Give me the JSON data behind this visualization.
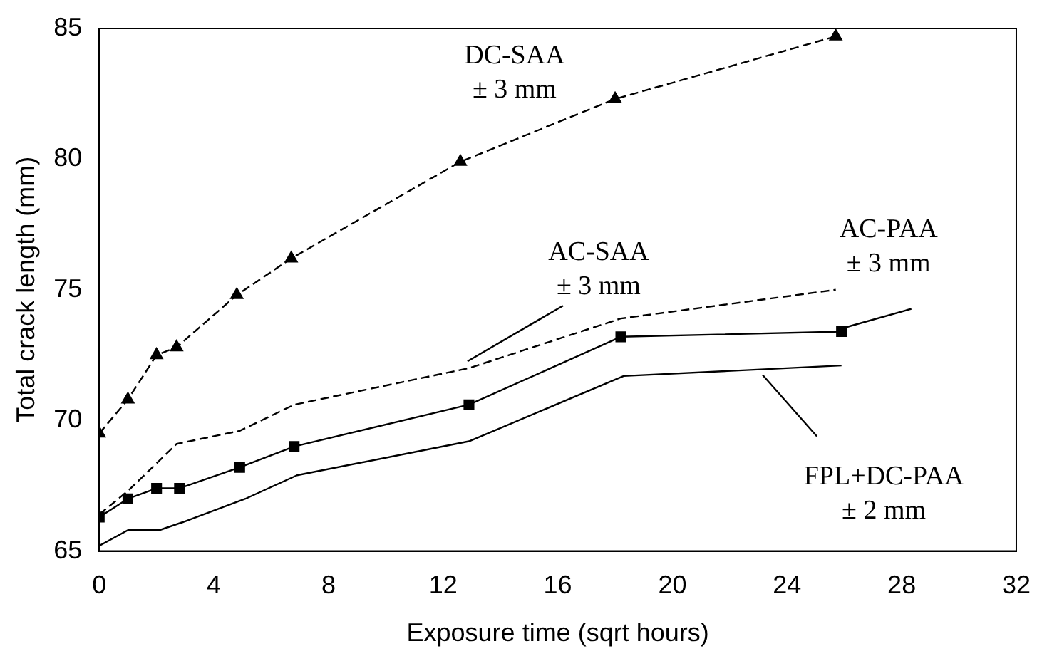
{
  "chart_data": {
    "type": "line",
    "xlabel": "Exposure time (sqrt hours)",
    "ylabel": "Total crack length (mm)",
    "xlim": [
      0,
      32
    ],
    "xticks": [
      0,
      4,
      8,
      12,
      16,
      20,
      24,
      28,
      32
    ],
    "ylim": [
      65,
      85
    ],
    "yticks": [
      65,
      70,
      75,
      80,
      85
    ],
    "grid": false,
    "legend": false,
    "series": [
      {
        "color": "#000000",
        "marker": "triangle",
        "line_style": "dashed",
        "x": [
          0,
          1,
          2,
          2.7,
          4.8,
          6.7,
          12.6,
          18,
          25.7
        ],
        "values": [
          69.5,
          70.8,
          72.5,
          72.8,
          74.8,
          76.2,
          79.9,
          82.3,
          84.7
        ]
      },
      {
        "color": "#000000",
        "marker": "none",
        "line_style": "dashed",
        "x": [
          0,
          1,
          2.7,
          4.9,
          6.8,
          12.9,
          18.2,
          25.7
        ],
        "values": [
          66.4,
          67.3,
          69.1,
          69.6,
          70.6,
          72,
          73.9,
          75
        ]
      },
      {
        "color": "#000000",
        "marker": "square",
        "line_style": "solid",
        "x": [
          0,
          1,
          2,
          2.8,
          4.9,
          6.8,
          12.9,
          18.2,
          25.9
        ],
        "values": [
          66.3,
          67,
          67.4,
          67.4,
          68.2,
          69,
          70.6,
          73.2,
          73.4
        ]
      },
      {
        "color": "#000000",
        "marker": "none",
        "line_style": "solid",
        "x": [
          0,
          1,
          2.1,
          2.9,
          5.1,
          6.9,
          12.9,
          18.3,
          25.9
        ],
        "values": [
          65.2,
          65.8,
          65.8,
          66.1,
          67,
          67.9,
          69.2,
          71.7,
          72.1
        ]
      }
    ],
    "annotations": [
      {
        "text": "DC-SAA\n± 3 mm",
        "x": 12.6,
        "y": 79.9
      },
      {
        "text": "AC-SAA\n± 3 mm",
        "x": 12.7,
        "y": 72.1
      },
      {
        "text": "AC-PAA\n± 3 mm",
        "x": 25.9,
        "y": 73.4
      },
      {
        "text": "FPL+DC-PAA\n± 2 mm",
        "x": 23,
        "y": 71.9
      }
    ]
  }
}
